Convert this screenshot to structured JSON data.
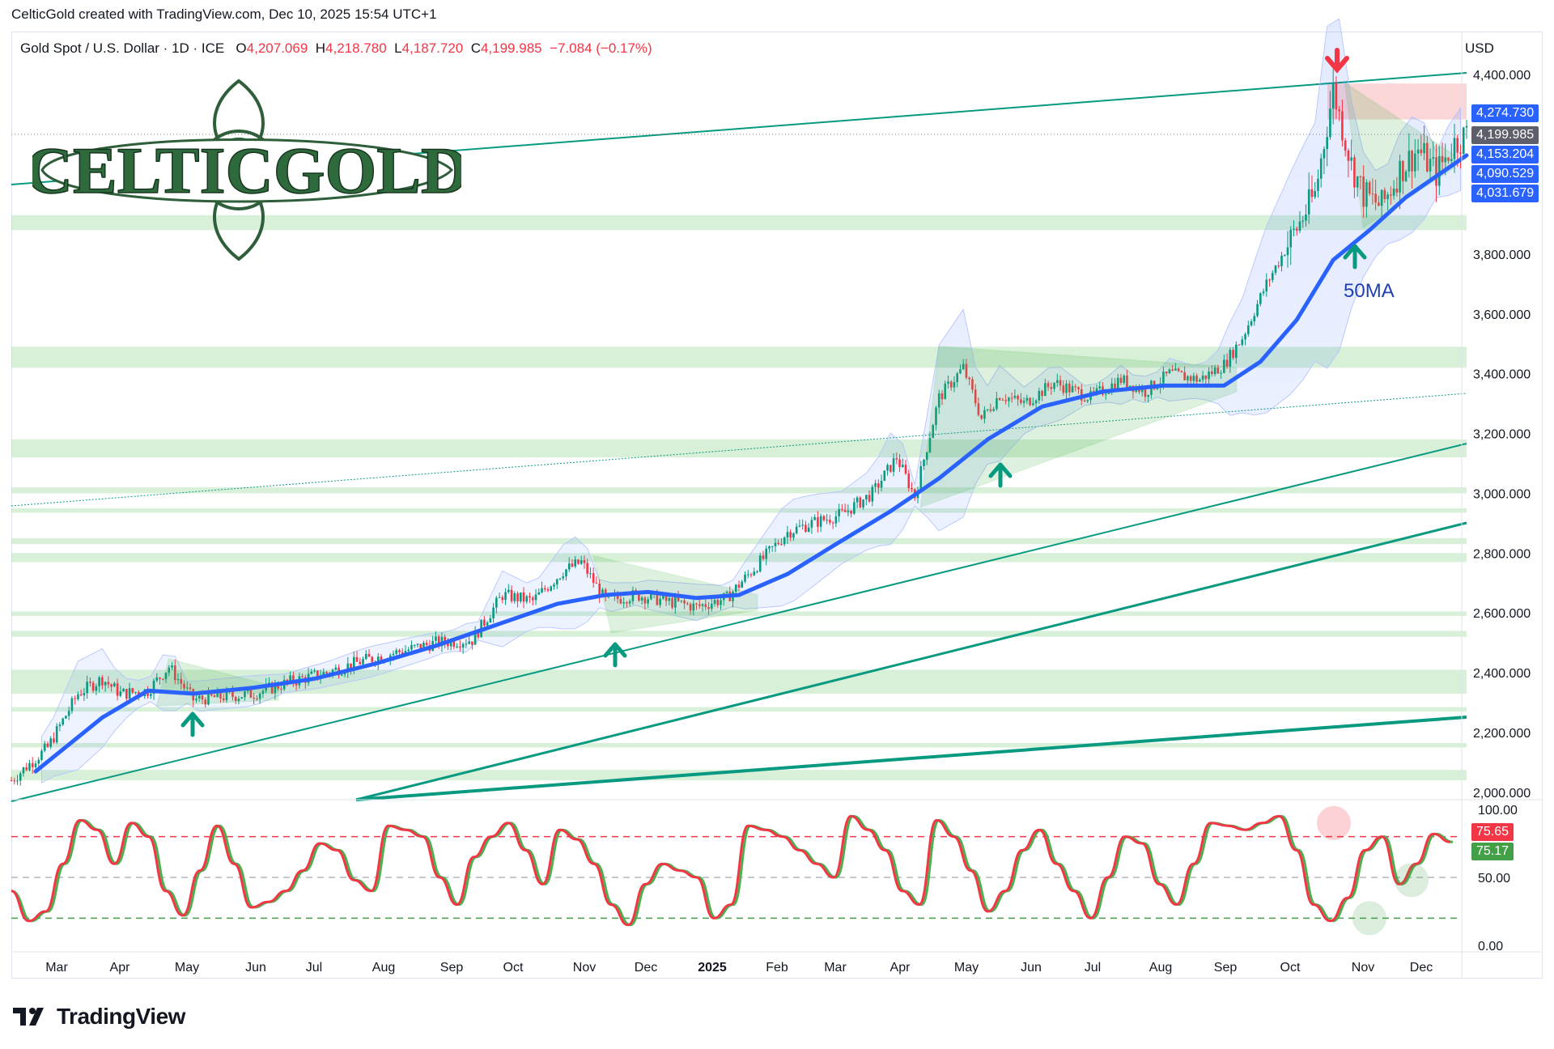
{
  "attribution": "CelticGold created with TradingView.com, Dec 10, 2025 15:54 UTC+1",
  "symbol": {
    "name": "Gold Spot / U.S. Dollar · 1D · ICE",
    "open_label": "O",
    "open": "4,207.069",
    "high_label": "H",
    "high": "4,218.780",
    "low_label": "L",
    "low": "4,187.720",
    "close_label": "C",
    "close": "4,199.985",
    "change": "−7.084 (−0.17%)"
  },
  "currency": "USD",
  "logo_text": "CELTICGOLD",
  "ma_label": "50MA",
  "price_tags": {
    "t1": "4,274.730",
    "t2": "4,199.985",
    "t3": "4,153.204",
    "t4": "4,090.529",
    "t5": "4,031.679"
  },
  "osc_tags": {
    "k": "75.65",
    "d": "75.17"
  },
  "footer_brand": "TradingView",
  "colors": {
    "up": "#089981",
    "down": "#f23645",
    "ma": "#2962ff",
    "trend": "#089981",
    "zone": "#b7e4b7",
    "resistance": "#f8c5c5",
    "stoch_k": "#f23645",
    "stoch_d": "#4caf50"
  },
  "chart_data": [
    {
      "type": "candlestick",
      "title": "Gold Spot / U.S. Dollar",
      "x_labels": [
        "Mar",
        "Apr",
        "May",
        "Jun",
        "Jul",
        "Aug",
        "Sep",
        "Oct",
        "Nov",
        "Dec",
        "2025",
        "Feb",
        "Mar",
        "Apr",
        "May",
        "Jun",
        "Jul",
        "Aug",
        "Sep",
        "Oct",
        "Nov",
        "Dec"
      ],
      "y_ticks": [
        "2,000.000",
        "2,200.000",
        "2,400.000",
        "2,600.000",
        "2,800.000",
        "3,000.000",
        "3,200.000",
        "3,400.000",
        "3,600.000",
        "3,800.000",
        "4,400.000"
      ],
      "ylim": [
        1970,
        4460
      ],
      "close_path": [
        [
          0,
          2040
        ],
        [
          12,
          2150
        ],
        [
          22,
          2330
        ],
        [
          30,
          2380
        ],
        [
          36,
          2330
        ],
        [
          45,
          2340
        ],
        [
          52,
          2420
        ],
        [
          60,
          2310
        ],
        [
          70,
          2320
        ],
        [
          80,
          2330
        ],
        [
          92,
          2370
        ],
        [
          104,
          2400
        ],
        [
          116,
          2440
        ],
        [
          128,
          2470
        ],
        [
          140,
          2500
        ],
        [
          152,
          2510
        ],
        [
          162,
          2660
        ],
        [
          172,
          2640
        ],
        [
          182,
          2740
        ],
        [
          188,
          2770
        ],
        [
          196,
          2640
        ],
        [
          206,
          2660
        ],
        [
          216,
          2640
        ],
        [
          226,
          2620
        ],
        [
          236,
          2650
        ],
        [
          246,
          2760
        ],
        [
          256,
          2870
        ],
        [
          264,
          2900
        ],
        [
          274,
          2930
        ],
        [
          284,
          3000
        ],
        [
          292,
          3120
        ],
        [
          298,
          2990
        ],
        [
          306,
          3320
        ],
        [
          314,
          3420
        ],
        [
          320,
          3250
        ],
        [
          326,
          3330
        ],
        [
          334,
          3300
        ],
        [
          344,
          3370
        ],
        [
          356,
          3320
        ],
        [
          366,
          3380
        ],
        [
          374,
          3340
        ],
        [
          382,
          3400
        ],
        [
          392,
          3380
        ],
        [
          400,
          3430
        ],
        [
          406,
          3520
        ],
        [
          414,
          3700
        ],
        [
          422,
          3850
        ],
        [
          430,
          4000
        ],
        [
          436,
          4350
        ],
        [
          442,
          4100
        ],
        [
          446,
          4000
        ],
        [
          452,
          3960
        ],
        [
          458,
          4080
        ],
        [
          464,
          4150
        ],
        [
          470,
          4070
        ],
        [
          476,
          4170
        ],
        [
          480,
          4200
        ]
      ],
      "ma50_path": [
        [
          8,
          2070
        ],
        [
          30,
          2250
        ],
        [
          45,
          2340
        ],
        [
          60,
          2330
        ],
        [
          80,
          2350
        ],
        [
          100,
          2380
        ],
        [
          120,
          2430
        ],
        [
          140,
          2490
        ],
        [
          160,
          2560
        ],
        [
          180,
          2630
        ],
        [
          196,
          2660
        ],
        [
          210,
          2670
        ],
        [
          226,
          2650
        ],
        [
          240,
          2660
        ],
        [
          256,
          2730
        ],
        [
          272,
          2830
        ],
        [
          290,
          2940
        ],
        [
          306,
          3050
        ],
        [
          322,
          3180
        ],
        [
          340,
          3290
        ],
        [
          360,
          3340
        ],
        [
          380,
          3360
        ],
        [
          400,
          3360
        ],
        [
          412,
          3440
        ],
        [
          424,
          3580
        ],
        [
          436,
          3780
        ],
        [
          448,
          3880
        ],
        [
          460,
          3990
        ],
        [
          480,
          4130
        ]
      ],
      "annotations": [
        "50MA"
      ]
    },
    {
      "type": "line",
      "title": "Stochastic",
      "y_ticks": [
        "100.00",
        "50.00",
        "0.00"
      ],
      "ylim": [
        0,
        100
      ],
      "levels": [
        80,
        50,
        20
      ],
      "series": [
        {
          "values": [
            40,
            18,
            25,
            60,
            92,
            85,
            60,
            90,
            80,
            40,
            22,
            55,
            88,
            60,
            28,
            32,
            40,
            55,
            75,
            70,
            48,
            40,
            88,
            85,
            80,
            50,
            30,
            65,
            80,
            90,
            70,
            45,
            85,
            78,
            60,
            30,
            15,
            45,
            60,
            55,
            50,
            20,
            30,
            88,
            85,
            80,
            70,
            60,
            50,
            95,
            85,
            70,
            40,
            30,
            92,
            80,
            55,
            25,
            40,
            70,
            85,
            60,
            40,
            20,
            50,
            80,
            75,
            45,
            30,
            60,
            90,
            88,
            85,
            90,
            95,
            70,
            30,
            18,
            35,
            70,
            80,
            45,
            60,
            82,
            76
          ]
        }
      ]
    }
  ]
}
